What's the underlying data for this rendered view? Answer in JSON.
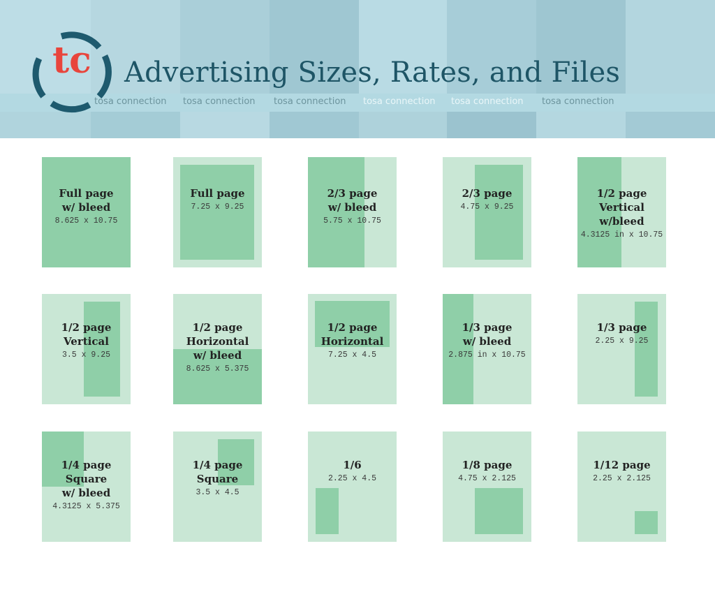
{
  "header": {
    "title": "Advertising Sizes, Rates, and Files",
    "logo_letters": "tc",
    "background_captions": [
      "tosa connection",
      "tosa connection",
      "tosa connection",
      "tosa connection",
      "tosa connection",
      "tosa connection"
    ]
  },
  "colors": {
    "header_bg": "#c4e4ec",
    "title_text": "#1e5566",
    "logo_ring": "#1e5a6e",
    "logo_letters": "#e8453c",
    "card_bg": "#c9e7d5",
    "ad_area": "#8fcfa8"
  },
  "ads": [
    {
      "name": "Full page\nw/ bleed",
      "size": "8.625 x 10.75"
    },
    {
      "name": "Full page",
      "size": "7.25 x 9.25"
    },
    {
      "name": "2/3 page\nw/ bleed",
      "size": "5.75 x 10.75"
    },
    {
      "name": "2/3 page",
      "size": "4.75 x 9.25"
    },
    {
      "name": "1/2 page\nVertical\nw/bleed",
      "size": "4.3125 in x 10.75"
    },
    {
      "name": "1/2 page\nVertical",
      "size": "3.5 x 9.25"
    },
    {
      "name": "1/2 page\nHorizontal\nw/ bleed",
      "size": "8.625 x 5.375"
    },
    {
      "name": "1/2 page\nHorizontal",
      "size": "7.25 x 4.5"
    },
    {
      "name": "1/3 page\nw/ bleed",
      "size": "2.875 in x 10.75"
    },
    {
      "name": "1/3 page",
      "size": "2.25 x 9.25"
    },
    {
      "name": "1/4 page\nSquare\nw/ bleed",
      "size": "4.3125 x 5.375"
    },
    {
      "name": "1/4 page\nSquare",
      "size": "3.5 x 4.5"
    },
    {
      "name": "1/6",
      "size": "2.25 x 4.5"
    },
    {
      "name": "1/8 page",
      "size": "4.75 x 2.125"
    },
    {
      "name": "1/12 page",
      "size": "2.25 x 2.125"
    }
  ]
}
